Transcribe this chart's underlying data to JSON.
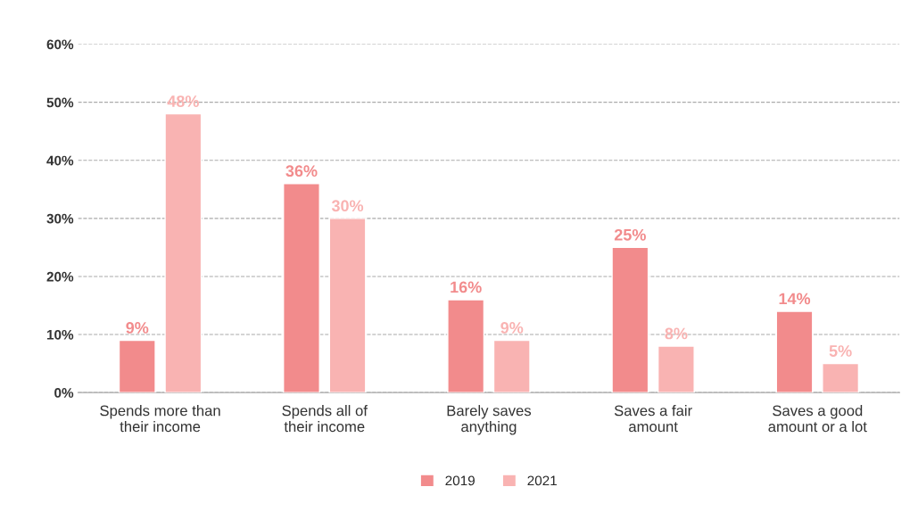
{
  "chart_data": {
    "type": "bar",
    "categories": [
      "Spends more than\ntheir income",
      "Spends all of\ntheir income",
      "Barely saves\nanything",
      "Saves a fair\namount",
      "Saves a good\namount or a lot"
    ],
    "series": [
      {
        "name": "2019",
        "color": "#f28b8c",
        "values": [
          9,
          36,
          16,
          25,
          14
        ],
        "value_labels": [
          "9%",
          "36%",
          "16%",
          "25%",
          "14%"
        ]
      },
      {
        "name": "2021",
        "color": "#f9b3b2",
        "values": [
          48,
          30,
          9,
          8,
          5
        ],
        "value_labels": [
          "48%",
          "30%",
          "9%",
          "8%",
          "5%"
        ]
      }
    ],
    "ylim": [
      0,
      60
    ],
    "yticks": [
      {
        "value": 0,
        "label": "0%"
      },
      {
        "value": 10,
        "label": "10%"
      },
      {
        "value": 20,
        "label": "20%"
      },
      {
        "value": 30,
        "label": "30%"
      },
      {
        "value": 40,
        "label": "40%"
      },
      {
        "value": 50,
        "label": "50%"
      },
      {
        "value": 60,
        "label": "60%"
      }
    ],
    "grid": "y",
    "legend": "bottom"
  }
}
